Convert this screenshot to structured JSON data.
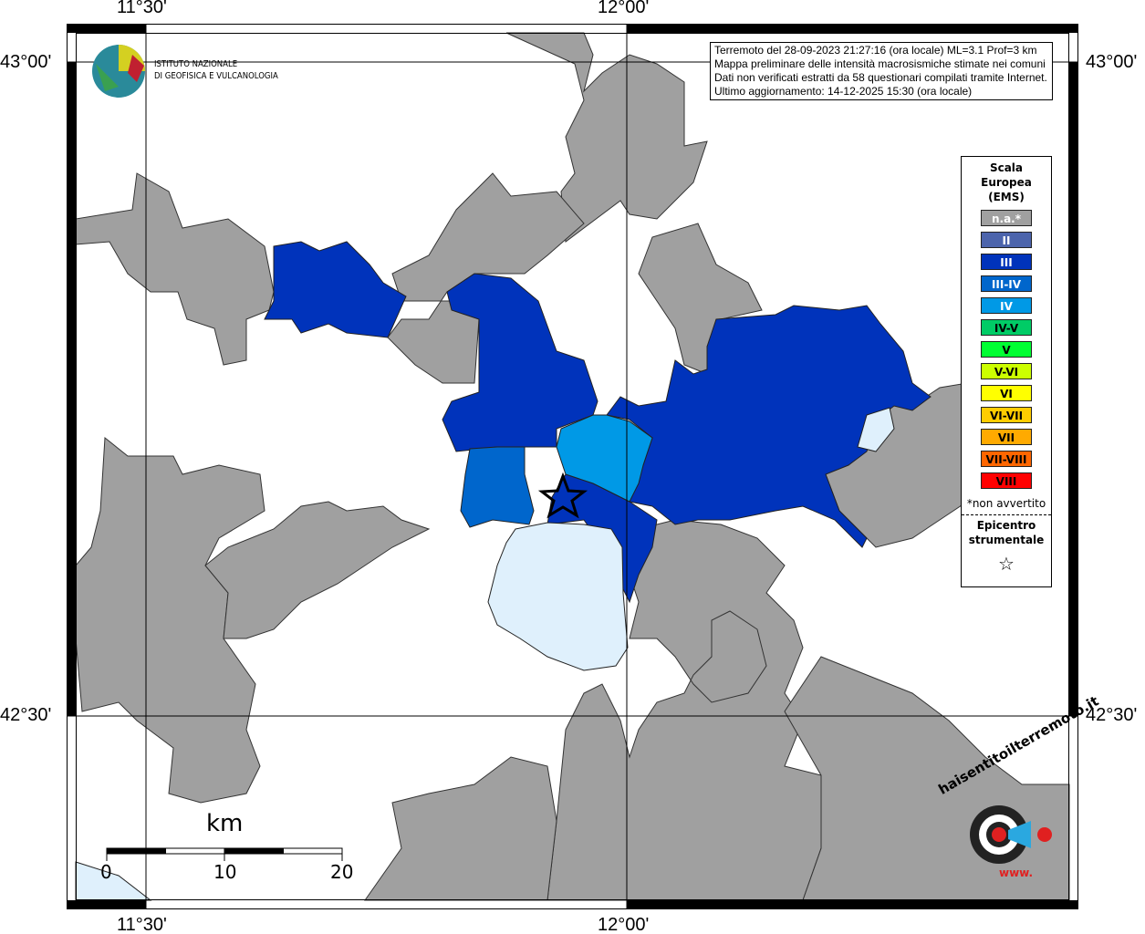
{
  "info_box": {
    "lines": [
      "Terremoto del 28-09-2023 21:27:16 (ora locale) ML=3.1 Prof=3 km",
      "Mappa preliminare delle intensità macrosismiche stimate nei comuni",
      "Dati non verificati estratti da 58 questionari compilati tramite Internet.",
      "Ultimo aggiornamento: 14-12-2025 15:30 (ora locale)"
    ]
  },
  "axes": {
    "lon_ticks": [
      "11°30'",
      "12°00'"
    ],
    "lat_ticks": [
      "43°00'",
      "42°30'"
    ]
  },
  "logo_ingv": {
    "line1": "ISTITUTO NAZIONALE",
    "line2": "DI GEOFISICA E VULCANOLOGIA"
  },
  "logo_hsit": {
    "text": "haisentitoilterremoto.it",
    "prefix": "www."
  },
  "legend": {
    "title": [
      "Scala",
      "Europea",
      "(EMS)"
    ],
    "items": [
      {
        "label": "n.a.*",
        "color": "#a0a0a0",
        "text_color": "#ffffff"
      },
      {
        "label": "II",
        "color": "#4c64ac",
        "text_color": "#ffffff"
      },
      {
        "label": "III",
        "color": "#0033bb",
        "text_color": "#ffffff"
      },
      {
        "label": "III-IV",
        "color": "#0066cc",
        "text_color": "#ffffff"
      },
      {
        "label": "IV",
        "color": "#0099e6",
        "text_color": "#ffffff"
      },
      {
        "label": "IV-V",
        "color": "#00cc66",
        "text_color": "#000000"
      },
      {
        "label": "V",
        "color": "#00ff33",
        "text_color": "#000000"
      },
      {
        "label": "V-VI",
        "color": "#ccff00",
        "text_color": "#000000"
      },
      {
        "label": "VI",
        "color": "#ffff00",
        "text_color": "#000000"
      },
      {
        "label": "VI-VII",
        "color": "#ffcc00",
        "text_color": "#000000"
      },
      {
        "label": "VII",
        "color": "#ffaa00",
        "text_color": "#000000"
      },
      {
        "label": "VII-VIII",
        "color": "#ff6600",
        "text_color": "#000000"
      },
      {
        "label": "VIII",
        "color": "#ff0000",
        "text_color": "#000000"
      }
    ],
    "note": "*non avvertito",
    "epicenter_label": [
      "Epicentro",
      "strumentale"
    ],
    "epicenter_icon": "star-outline-icon"
  },
  "scale_bar": {
    "unit": "km",
    "labels": [
      "0",
      "10",
      "20"
    ]
  }
}
